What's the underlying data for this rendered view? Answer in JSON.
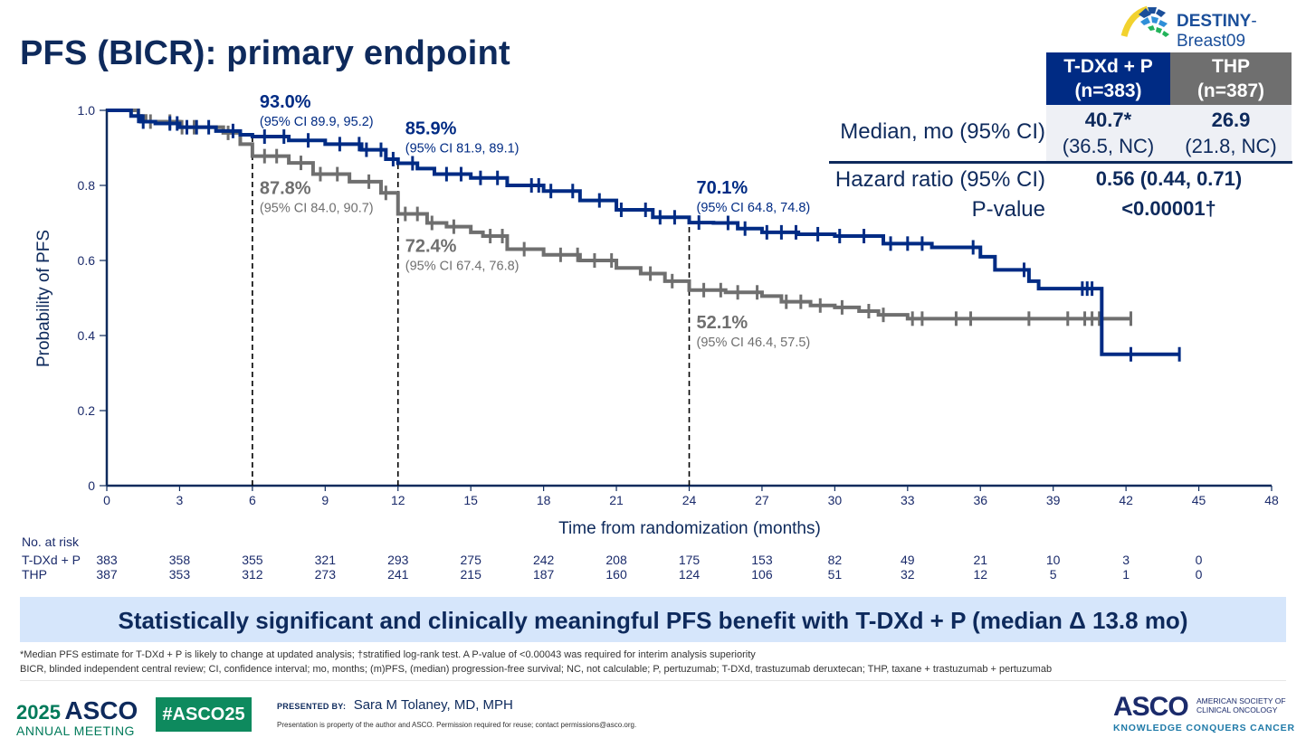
{
  "slide": {
    "title": "PFS (BICR): primary endpoint",
    "study_logo": {
      "prefix": "DESTINY",
      "suffix": "-Breast09",
      "icon": "destiny-arc-logo-icon"
    }
  },
  "stats_table": {
    "arm_a": {
      "name": "T-DXd + P",
      "n": "(n=383)",
      "color": "#002b84"
    },
    "arm_b": {
      "name": "THP",
      "n": "(n=387)",
      "color": "#6f6f6f"
    },
    "median_label": "Median, mo (95% CI)",
    "median_a": "40.7*",
    "median_a_ci": "(36.5, NC)",
    "median_b": "26.9",
    "median_b_ci": "(21.8, NC)",
    "hr_label": "Hazard ratio (95% CI)",
    "hr_value": "0.56 (0.44, 0.71)",
    "p_label": "P-value",
    "p_value": "<0.00001†"
  },
  "chart_data": {
    "type": "line",
    "subtype": "kaplan-meier",
    "title": "PFS (BICR): primary endpoint",
    "xlabel": "Time from randomization (months)",
    "ylabel": "Probability of PFS",
    "xlim": [
      0,
      48
    ],
    "ylim": [
      0,
      1.0
    ],
    "xticks": [
      0,
      3,
      6,
      9,
      12,
      15,
      18,
      21,
      24,
      27,
      30,
      33,
      36,
      39,
      42,
      45,
      48
    ],
    "yticks": [
      0,
      0.2,
      0.4,
      0.6,
      0.8,
      1.0
    ],
    "ytick_labels": [
      "0",
      "0.2",
      "0.4",
      "0.6",
      "0.8",
      "1.0"
    ],
    "grid": false,
    "series": [
      {
        "name": "T-DXd + P",
        "color": "#002b84",
        "x": [
          0,
          1.0,
          1.4,
          2.0,
          3.0,
          4.5,
          5.5,
          6,
          7.5,
          9,
          10.5,
          11.5,
          12,
          12.8,
          13.5,
          15,
          16.5,
          18,
          19.5,
          21,
          22.5,
          24,
          25,
          26,
          27,
          28.5,
          30,
          32,
          34,
          35.5,
          36,
          36.6,
          37.7,
          38,
          38.4,
          40,
          40.8,
          41,
          44.2
        ],
        "y": [
          1.0,
          0.985,
          0.97,
          0.965,
          0.955,
          0.945,
          0.935,
          0.93,
          0.92,
          0.91,
          0.895,
          0.87,
          0.859,
          0.845,
          0.83,
          0.82,
          0.8,
          0.785,
          0.76,
          0.735,
          0.715,
          0.701,
          0.7,
          0.685,
          0.675,
          0.67,
          0.665,
          0.645,
          0.635,
          0.635,
          0.61,
          0.575,
          0.575,
          0.545,
          0.525,
          0.525,
          0.525,
          0.35,
          0.35
        ],
        "censor_x": [
          1.3,
          1.5,
          2.6,
          2.9,
          3.3,
          3.7,
          4.2,
          5.2,
          6.5,
          7.3,
          8.3,
          9.6,
          10.4,
          10.7,
          11.3,
          11.8,
          12.6,
          14.0,
          14.6,
          15.4,
          16.1,
          17.5,
          17.8,
          18.3,
          19.2,
          20.3,
          21.2,
          22.2,
          22.8,
          23.4,
          24.4,
          25.6,
          26.3,
          27.2,
          27.8,
          28.4,
          29.3,
          30.2,
          31.2,
          32.3,
          33.0,
          33.6,
          35.7,
          37.8,
          40.2,
          40.4,
          40.6,
          42.2,
          44.2
        ]
      },
      {
        "name": "THP",
        "color": "#6f6f6f",
        "x": [
          0,
          1.3,
          1.6,
          3.0,
          4.8,
          5.5,
          6,
          7.5,
          8.5,
          10,
          11.3,
          12,
          13.2,
          14,
          15,
          15.5,
          16.5,
          18,
          19.5,
          21,
          22,
          23,
          24,
          25.5,
          27,
          27.8,
          29,
          30,
          31,
          31.8,
          33,
          36,
          38,
          42.2
        ],
        "y": [
          1.0,
          0.985,
          0.97,
          0.955,
          0.94,
          0.91,
          0.878,
          0.86,
          0.83,
          0.81,
          0.78,
          0.724,
          0.7,
          0.69,
          0.675,
          0.665,
          0.63,
          0.615,
          0.6,
          0.58,
          0.565,
          0.545,
          0.521,
          0.515,
          0.505,
          0.49,
          0.48,
          0.475,
          0.465,
          0.455,
          0.445,
          0.445,
          0.445,
          0.445
        ],
        "censor_x": [
          1.8,
          2.6,
          3.1,
          3.6,
          5.0,
          6.5,
          7.0,
          8.0,
          8.8,
          9.5,
          10.8,
          11.5,
          12.3,
          12.8,
          13.4,
          14.3,
          15.8,
          16.3,
          17.2,
          18.7,
          19.4,
          20.1,
          20.8,
          22.4,
          23.3,
          24.6,
          25.3,
          26.0,
          26.8,
          28.0,
          28.6,
          29.4,
          30.3,
          31.4,
          32.0,
          33.2,
          33.6,
          35.0,
          35.6,
          38.0,
          39.6,
          40.3,
          40.6,
          40.9,
          42.2
        ]
      }
    ],
    "reference_lines": [
      {
        "x": 6
      },
      {
        "x": 12
      },
      {
        "x": 24
      }
    ],
    "annotations": [
      {
        "x": 6,
        "label": "93.0%",
        "ci": "(95% CI 89.9, 95.2)",
        "series": "T-DXd + P",
        "position": "above"
      },
      {
        "x": 6,
        "label": "87.8%",
        "ci": "(95% CI 84.0, 90.7)",
        "series": "THP",
        "position": "below"
      },
      {
        "x": 12,
        "label": "85.9%",
        "ci": "(95% CI 81.9, 89.1)",
        "series": "T-DXd + P",
        "position": "above"
      },
      {
        "x": 12,
        "label": "72.4%",
        "ci": "(95% CI 67.4, 76.8)",
        "series": "THP",
        "position": "below"
      },
      {
        "x": 24,
        "label": "70.1%",
        "ci": "(95% CI 64.8, 74.8)",
        "series": "T-DXd + P",
        "position": "above"
      },
      {
        "x": 24,
        "label": "52.1%",
        "ci": "(95% CI 46.4, 57.5)",
        "series": "THP",
        "position": "below"
      }
    ]
  },
  "risk_table": {
    "title": "No. at risk",
    "rows": [
      {
        "label": "T-DXd + P",
        "color": "#1b2b6b",
        "values": [
          "383",
          "358",
          "355",
          "321",
          "293",
          "275",
          "242",
          "208",
          "175",
          "153",
          "82",
          "49",
          "21",
          "10",
          "3",
          "0"
        ]
      },
      {
        "label": "THP",
        "color": "#1b2b6b",
        "values": [
          "387",
          "353",
          "312",
          "273",
          "241",
          "215",
          "187",
          "160",
          "124",
          "106",
          "51",
          "32",
          "12",
          "5",
          "1",
          "0"
        ]
      }
    ]
  },
  "banner": "Statistically significant and clinically meaningful PFS benefit with T-DXd + P (median Δ 13.8 mo)",
  "footnotes": {
    "line1": "*Median PFS estimate for T-DXd + P is likely to change at updated analysis; †stratified log-rank test. A P-value of <0.00043 was required for interim analysis superiority",
    "line2": "BICR, blinded independent central review; CI, confidence interval; mo, months; (m)PFS, (median) progression-free survival; NC, not calculable; P, pertuzumab; T-DXd, trastuzumab deruxtecan; THP, taxane + trastuzumab + pertuzumab"
  },
  "footer": {
    "meeting_year": "2025",
    "meeting_org": "ASCO",
    "meeting_sub": "ANNUAL MEETING",
    "hashtag": "#ASCO25",
    "presented_by_label": "PRESENTED BY:",
    "presenter": "Sara M Tolaney, MD, MPH",
    "property_notice": "Presentation is property of the author and ASCO. Permission required for reuse; contact permissions@asco.org.",
    "asco_logo": "ASCO",
    "asco_full_1": "AMERICAN SOCIETY OF",
    "asco_full_2": "CLINICAL ONCOLOGY",
    "asco_tagline": "KNOWLEDGE CONQUERS CANCER"
  }
}
